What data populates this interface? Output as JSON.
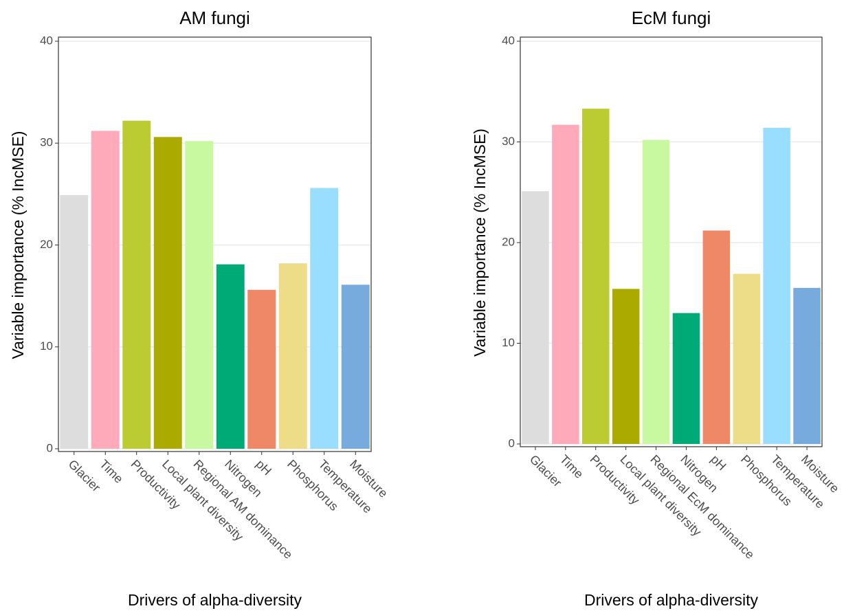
{
  "chart_data": [
    {
      "type": "bar",
      "title": "AM fungi",
      "x_label": "Drivers of alpha-diversity",
      "y_label": "Variable importance (% IncMSE)",
      "categories": [
        "Glacier",
        "Time",
        "Productivity",
        "Local plant diversity",
        "Regional AM dominance",
        "Nitrogen",
        "pH",
        "Phosphorus",
        "Temperature",
        "Moisture"
      ],
      "values": [
        24.9,
        31.2,
        32.2,
        30.6,
        30.2,
        18.1,
        15.6,
        18.2,
        25.6,
        16.1
      ],
      "colors": [
        "#dddddd",
        "#ffaabb",
        "#bbcc33",
        "#aaaa00",
        "#c8f8a0",
        "#00aa77",
        "#ee8866",
        "#eedd88",
        "#99ddff",
        "#77aadd"
      ],
      "ylim": [
        0,
        40
      ],
      "yticks": [
        0,
        10,
        20,
        30,
        40
      ],
      "grid": true
    },
    {
      "type": "bar",
      "title": "EcM fungi",
      "x_label": "Drivers of alpha-diversity",
      "y_label": "Variable importance (% IncMSE)",
      "categories": [
        "Glacier",
        "Time",
        "Productivity",
        "Local plant diversity",
        "Regional EcM dominance",
        "Nitrogen",
        "pH",
        "Phosphorus",
        "Temperature",
        "Moisture"
      ],
      "values": [
        25.1,
        31.7,
        33.3,
        15.4,
        30.2,
        13.0,
        21.2,
        16.9,
        31.4,
        15.5
      ],
      "colors": [
        "#dddddd",
        "#ffaabb",
        "#bbcc33",
        "#aaaa00",
        "#c8f8a0",
        "#00aa77",
        "#ee8866",
        "#eedd88",
        "#99ddff",
        "#77aadd"
      ],
      "ylim": [
        0,
        40
      ],
      "yticks": [
        0,
        10,
        20,
        30,
        40
      ],
      "grid": true
    }
  ]
}
